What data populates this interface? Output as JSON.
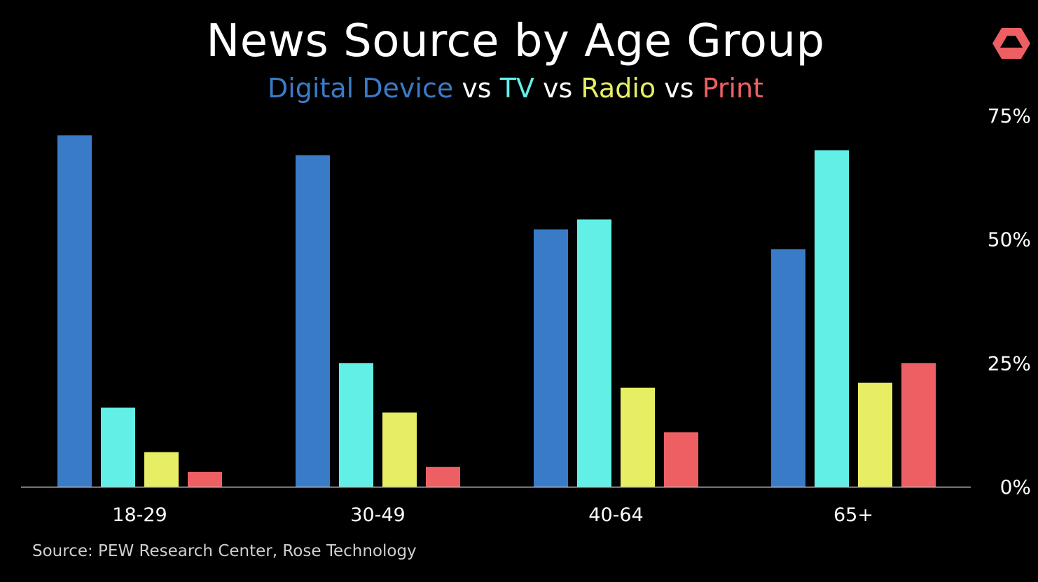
{
  "logo_name": "rose-technology-logo-icon",
  "source": "Source: PEW Research Center, Rose Technology",
  "colors": {
    "background": "#000000",
    "axis": "#bfbfbf",
    "text": "#ffffff",
    "vs": "#ffffff"
  },
  "chart_data": {
    "type": "bar",
    "title": "News Source by Age Group",
    "subtitle_parts": [
      {
        "text": "Digital Device",
        "color": "#3a7bc8"
      },
      {
        "text": " vs ",
        "color": "#ffffff"
      },
      {
        "text": "TV",
        "color": "#62f0e6"
      },
      {
        "text": " vs ",
        "color": "#ffffff"
      },
      {
        "text": "Radio",
        "color": "#e8ee64"
      },
      {
        "text": " vs ",
        "color": "#ffffff"
      },
      {
        "text": "Print",
        "color": "#ee5f64"
      }
    ],
    "categories": [
      "18-29",
      "30-49",
      "40-64",
      "65+"
    ],
    "series": [
      {
        "name": "Digital Device",
        "color": "#3a7bc8",
        "values": [
          71,
          67,
          52,
          48
        ]
      },
      {
        "name": "TV",
        "color": "#62f0e6",
        "values": [
          16,
          25,
          54,
          68
        ]
      },
      {
        "name": "Radio",
        "color": "#e8ee64",
        "values": [
          7,
          15,
          20,
          21
        ]
      },
      {
        "name": "Print",
        "color": "#ee5f64",
        "values": [
          3,
          4,
          11,
          25
        ]
      }
    ],
    "y_ticks": [
      {
        "value": 0,
        "label": "0%"
      },
      {
        "value": 25,
        "label": "25%"
      },
      {
        "value": 50,
        "label": "50%"
      },
      {
        "value": 75,
        "label": "75%"
      }
    ],
    "ylim": [
      0,
      75
    ],
    "y_axis_side": "right",
    "grid": false,
    "xlabel": "",
    "ylabel": ""
  }
}
